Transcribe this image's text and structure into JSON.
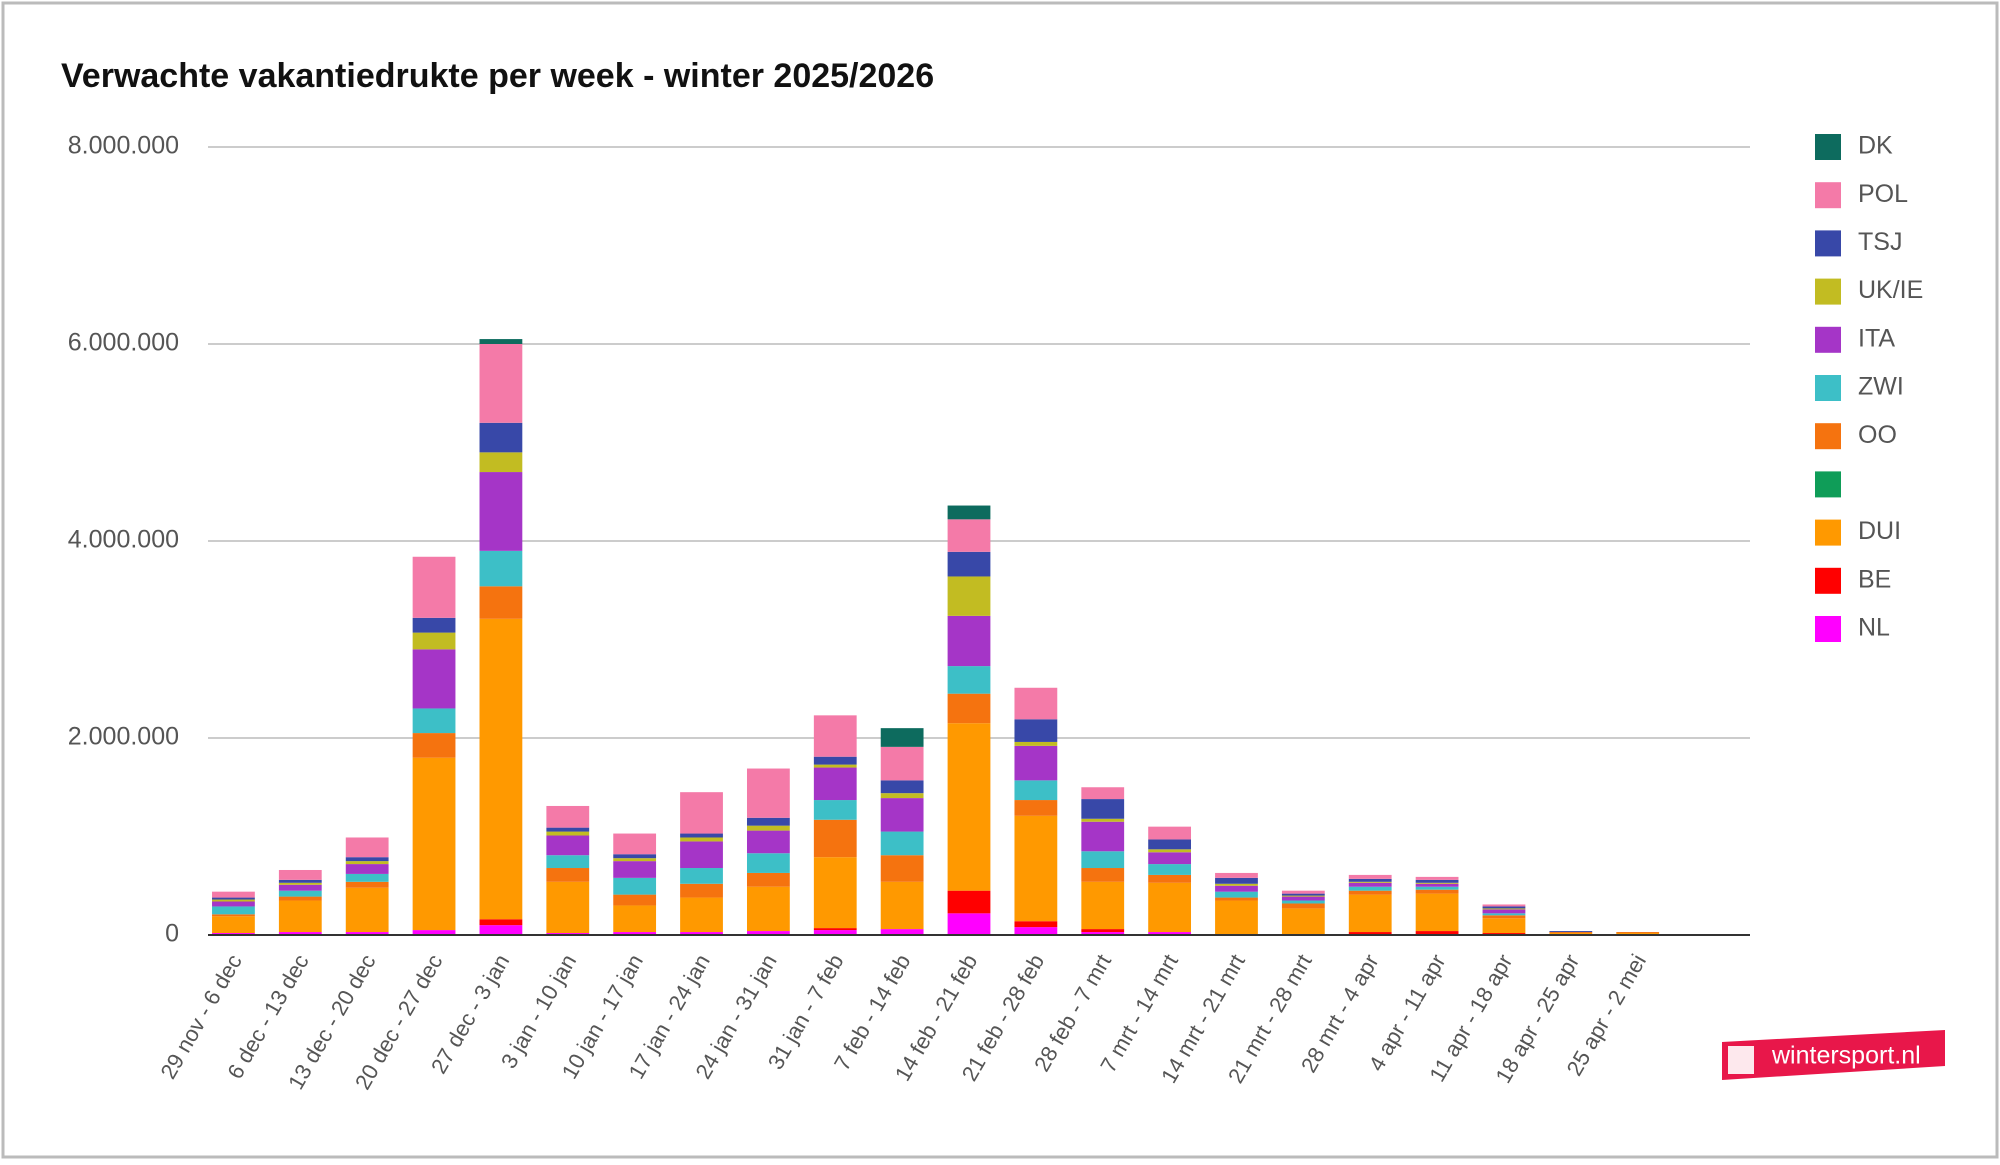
{
  "chart_data": {
    "type": "stacked_bar",
    "title": "Verwachte vakantiedrukte per week - winter 2025/2026",
    "logo": "wintersport.nl",
    "categories": [
      "29 nov - 6 dec",
      "6 dec - 13 dec",
      "13 dec - 20 dec",
      "20 dec - 27 dec",
      "27 dec - 3 jan",
      "3 jan - 10 jan",
      "10 jan - 17 jan",
      "17 jan - 24 jan",
      "24 jan - 31 jan",
      "31 jan - 7 feb",
      "7 feb - 14 feb",
      "14 feb - 21 feb",
      "21 feb - 28 feb",
      "28 feb - 7 mrt",
      "7 mrt - 14 mrt",
      "14 mrt - 21 mrt",
      "21 mrt - 28 mrt",
      "28 mrt - 4 apr",
      "4 apr - 11 apr",
      "11 apr - 18 apr",
      "18 apr - 25 apr",
      "25 apr - 2 mei",
      null
    ],
    "ylim": [
      0,
      8000000
    ],
    "yticks": [
      0,
      {
        "value": 2000000,
        "label": "2.000.000"
      },
      {
        "value": 4000000,
        "label": "4.000.000"
      },
      {
        "value": 6000000,
        "label": "6.000.000"
      },
      {
        "value": 8000000,
        "label": "8.000.000"
      }
    ],
    "grid": true,
    "legend": "right",
    "series": [
      {
        "name": "NL",
        "color": "#ff00ff",
        "values": [
          20000,
          30000,
          30000,
          50000,
          100000,
          20000,
          30000,
          30000,
          40000,
          50000,
          60000,
          220000,
          80000,
          30000,
          30000,
          10000,
          10000,
          10000,
          10000,
          0,
          0,
          0,
          0
        ]
      },
      {
        "name": "BE",
        "color": "#ff0000",
        "values": [
          0,
          0,
          0,
          0,
          60000,
          0,
          0,
          0,
          0,
          20000,
          0,
          230000,
          60000,
          30000,
          0,
          0,
          0,
          20000,
          30000,
          20000,
          0,
          0,
          0
        ]
      },
      {
        "name": "DUI",
        "color": "#ff9900",
        "values": [
          170000,
          320000,
          450000,
          1750000,
          3050000,
          520000,
          270000,
          350000,
          450000,
          720000,
          480000,
          1700000,
          1070000,
          480000,
          500000,
          340000,
          260000,
          380000,
          380000,
          150000,
          20000,
          20000,
          5000
        ]
      },
      {
        "color": "#0f9d58",
        "values": [
          0,
          0,
          0,
          0,
          0,
          0,
          0,
          0,
          0,
          0,
          0,
          0,
          0,
          0,
          0,
          0,
          0,
          0,
          0,
          0,
          0,
          0,
          0
        ]
      },
      {
        "name": "OO",
        "color": "#f5730f",
        "values": [
          20000,
          40000,
          60000,
          250000,
          330000,
          140000,
          110000,
          140000,
          140000,
          380000,
          270000,
          300000,
          160000,
          140000,
          80000,
          30000,
          50000,
          40000,
          40000,
          30000,
          10000,
          10000,
          0
        ]
      },
      {
        "name": "ZWI",
        "color": "#3dbfc7",
        "values": [
          80000,
          60000,
          80000,
          250000,
          360000,
          130000,
          170000,
          160000,
          200000,
          200000,
          240000,
          280000,
          200000,
          170000,
          110000,
          60000,
          30000,
          40000,
          30000,
          20000,
          0,
          0,
          0
        ]
      },
      {
        "name": "ITA",
        "color": "#a535c7",
        "values": [
          50000,
          60000,
          100000,
          600000,
          800000,
          200000,
          170000,
          270000,
          230000,
          330000,
          340000,
          510000,
          350000,
          300000,
          120000,
          60000,
          40000,
          40000,
          30000,
          40000,
          0,
          0,
          0
        ]
      },
      {
        "name": "UK/IE",
        "color": "#c2bc22",
        "values": [
          20000,
          20000,
          30000,
          170000,
          200000,
          40000,
          30000,
          40000,
          50000,
          30000,
          50000,
          400000,
          40000,
          30000,
          30000,
          20000,
          10000,
          10000,
          10000,
          10000,
          0,
          0,
          0
        ]
      },
      {
        "name": "TSJ",
        "color": "#3848a8",
        "values": [
          20000,
          30000,
          40000,
          150000,
          300000,
          40000,
          40000,
          40000,
          80000,
          80000,
          130000,
          250000,
          230000,
          200000,
          100000,
          60000,
          20000,
          30000,
          30000,
          20000,
          10000,
          0,
          0
        ]
      },
      {
        "name": "POL",
        "color": "#f47aa8",
        "values": [
          60000,
          100000,
          200000,
          620000,
          800000,
          220000,
          210000,
          420000,
          500000,
          420000,
          340000,
          330000,
          320000,
          120000,
          130000,
          50000,
          30000,
          40000,
          30000,
          20000,
          0,
          0,
          0
        ]
      },
      {
        "name": "DK",
        "color": "#0d6b5e",
        "values": [
          0,
          0,
          0,
          0,
          50000,
          0,
          0,
          0,
          0,
          0,
          190000,
          140000,
          0,
          0,
          0,
          0,
          0,
          0,
          0,
          0,
          0,
          0,
          0
        ]
      }
    ]
  }
}
